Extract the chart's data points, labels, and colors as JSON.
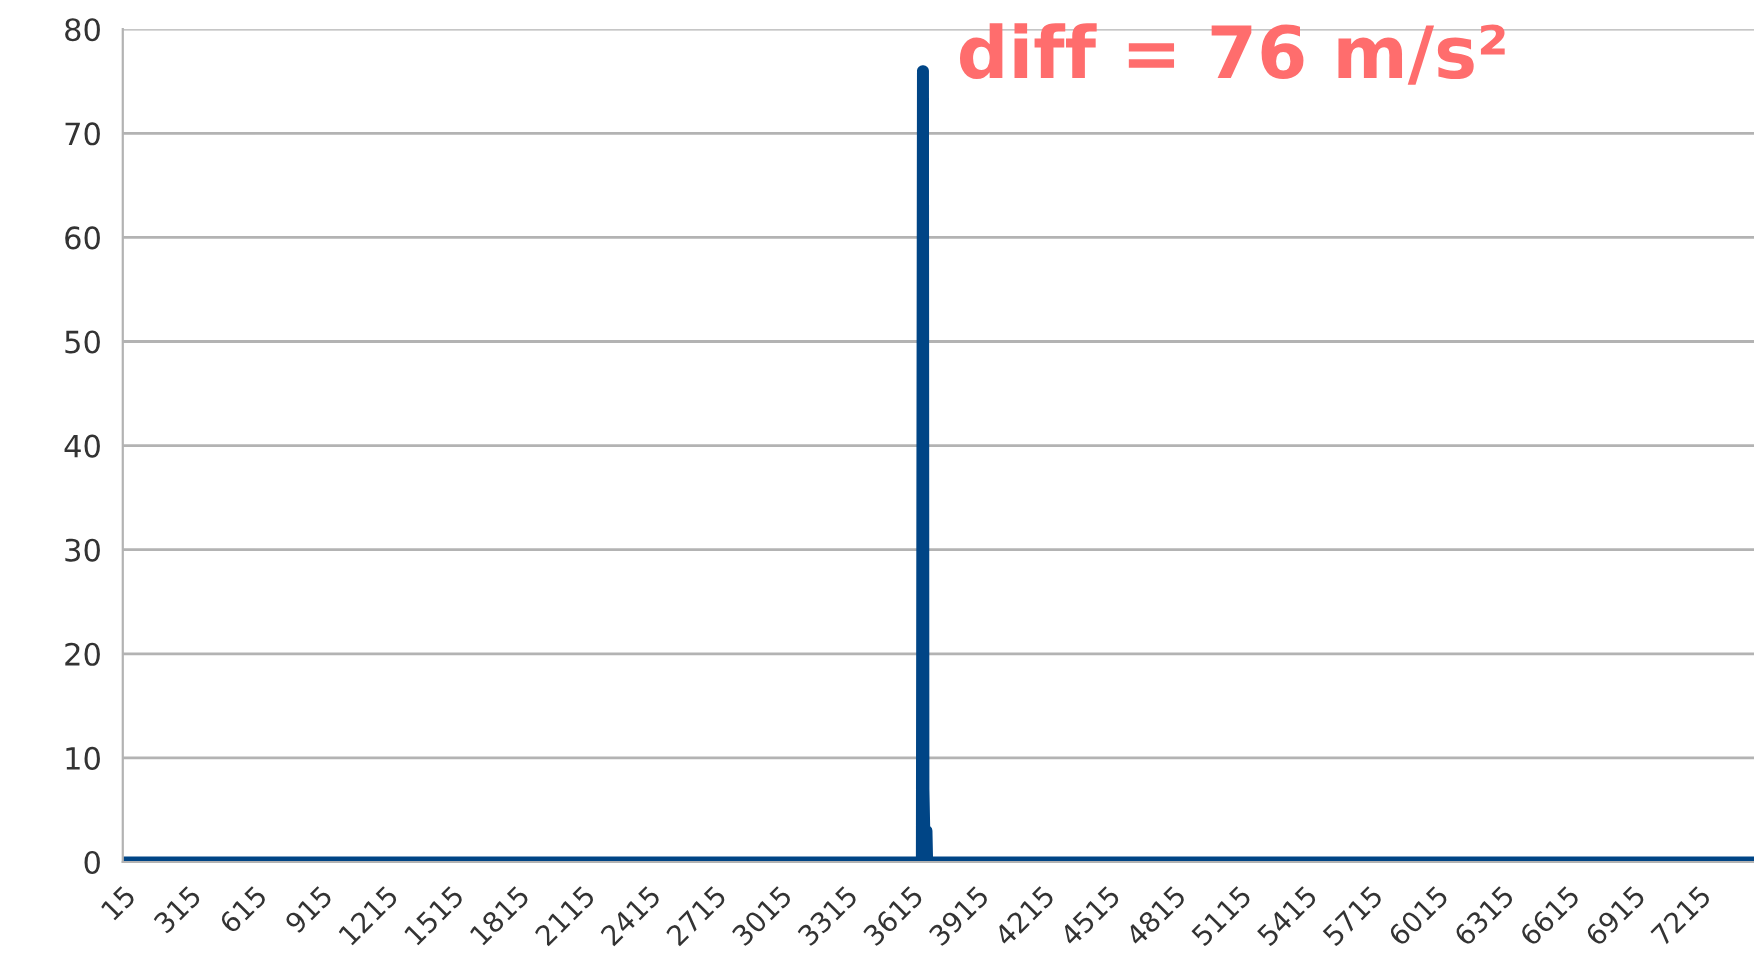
{
  "chart_data": {
    "type": "line",
    "x": [
      15,
      3665,
      3670,
      3674,
      3676,
      3680,
      3690,
      3693,
      7470
    ],
    "series": [
      {
        "color": "#004586",
        "values": [
          0,
          0,
          76,
          76,
          7,
          3,
          3,
          0,
          0
        ]
      }
    ],
    "xlim": [
      15,
      7470
    ],
    "xticks": [
      15,
      315,
      615,
      915,
      1215,
      1515,
      1815,
      2115,
      2415,
      2715,
      3015,
      3315,
      3615,
      3915,
      4215,
      4515,
      4815,
      5115,
      5415,
      5715,
      6015,
      6315,
      6615,
      6915,
      7215
    ],
    "ylim": [
      0,
      80
    ],
    "yticks": [
      0,
      10,
      20,
      30,
      40,
      50,
      60,
      70,
      80
    ],
    "grid": "y",
    "legend": false,
    "marker": "none",
    "line_style": "solid",
    "annotations": [
      {
        "text": "diff = 76 m/s²",
        "x": 3674,
        "y": 76
      }
    ]
  }
}
